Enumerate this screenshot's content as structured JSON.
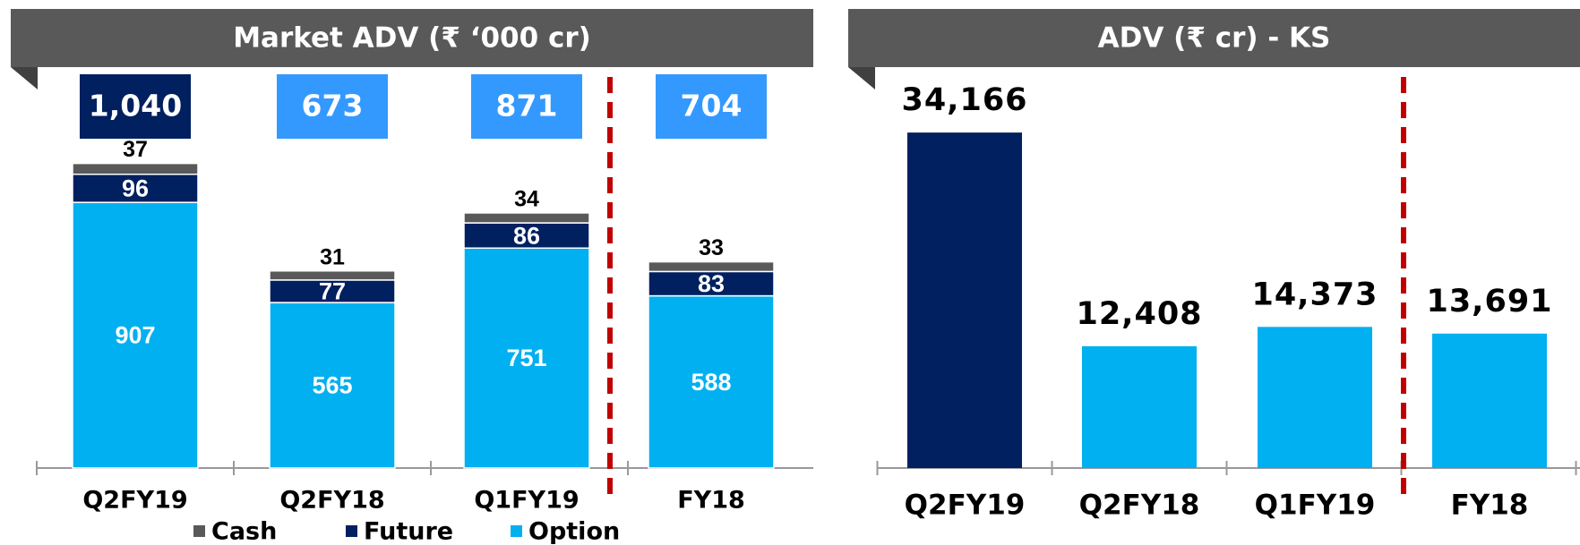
{
  "chart_data": [
    {
      "type": "stacked_bar",
      "title": "Market ADV (₹ ‘000 cr)",
      "categories": [
        "Q2FY19",
        "Q2FY18",
        "Q1FY19",
        "FY18"
      ],
      "series": [
        {
          "name": "Option",
          "color": "#00b0f0",
          "values": [
            907,
            565,
            751,
            588
          ]
        },
        {
          "name": "Future",
          "color": "#002060",
          "values": [
            96,
            77,
            86,
            83
          ]
        },
        {
          "name": "Cash",
          "color": "#595959",
          "values": [
            37,
            31,
            34,
            33
          ]
        }
      ],
      "totals": {
        "values": [
          1040,
          673,
          871,
          704
        ],
        "value_labels": [
          "1,040",
          "673",
          "871",
          "704"
        ],
        "colors": [
          "#002060",
          "#3399ff",
          "#3399ff",
          "#3399ff"
        ]
      },
      "ylim": [
        0,
        1100
      ]
    },
    {
      "type": "bar",
      "title": "ADV (₹ cr) - KS",
      "categories": [
        "Q2FY19",
        "Q2FY18",
        "Q1FY19",
        "FY18"
      ],
      "values": [
        34166,
        12408,
        14373,
        13691
      ],
      "value_labels": [
        "34,166",
        "12,408",
        "14,373",
        "13,691"
      ],
      "colors": [
        "#002060",
        "#00b0f0",
        "#00b0f0",
        "#00b0f0"
      ],
      "ylim": [
        0,
        36000
      ]
    }
  ]
}
